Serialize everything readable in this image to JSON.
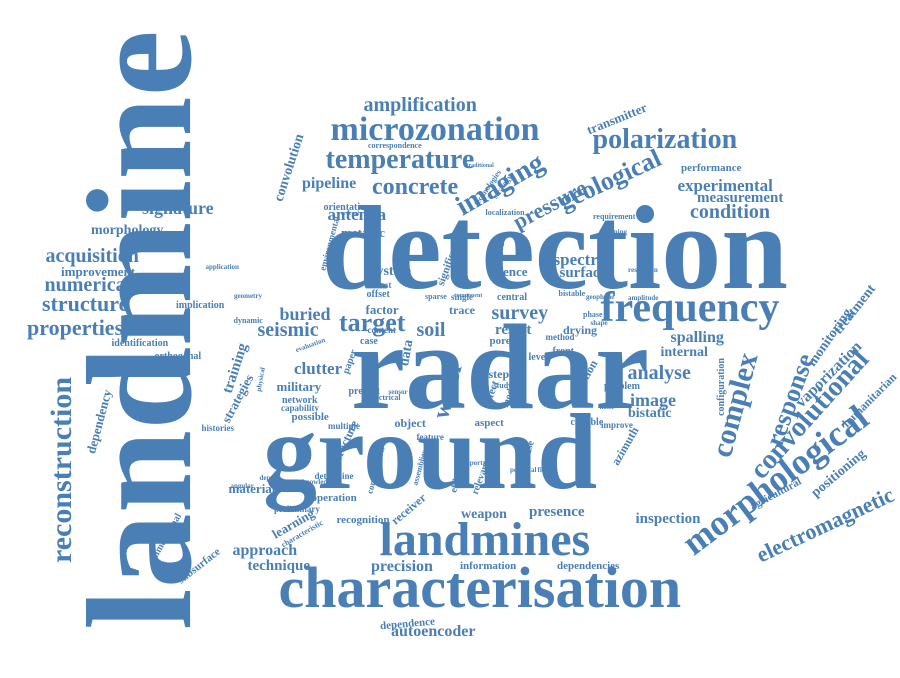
{
  "color": "#4a7fb5",
  "words": [
    "landmine",
    "detection",
    "radar",
    "ground",
    "characterisation",
    "landmines",
    "frequency",
    "microzonation",
    "morphological",
    "temperature",
    "polarization",
    "imaging",
    "geological",
    "concrete",
    "complex",
    "response",
    "convolutional",
    "electromagnetic",
    "reconstruction",
    "amplification",
    "pressure",
    "condition",
    "experimental",
    "measurement",
    "properties",
    "structure",
    "acquisition",
    "numerical",
    "signature",
    "antenna",
    "target",
    "seismic",
    "survey",
    "soil",
    "buried",
    "spectra",
    "surface",
    "analyse",
    "approach",
    "precision",
    "technique",
    "autoencoder",
    "morphology",
    "improvement",
    "convolution",
    "transmitter",
    "pipeline",
    "metallic",
    "orientation",
    "factor",
    "system",
    "clutter",
    "military",
    "network",
    "spalling",
    "internal",
    "image",
    "bistatic",
    "vaporization",
    "monitoring",
    "treatment",
    "humanitarian",
    "positioning",
    "agricultural",
    "inspection",
    "presence",
    "weapon",
    "information",
    "dependencies",
    "dependence",
    "subsurface",
    "learning",
    "training",
    "strategies",
    "dependency",
    "material",
    "receiver",
    "recognition",
    "operation",
    "water",
    "data",
    "result",
    "science",
    "performance",
    "identification",
    "orthogonal",
    "implication",
    "possible",
    "capability",
    "histories",
    "fracture",
    "pore",
    "drying",
    "trace",
    "offset",
    "single",
    "test",
    "central",
    "case",
    "step",
    "paper",
    "object",
    "aspect",
    "feature",
    "multiple",
    "azimuth",
    "configuration",
    "preliminary",
    "dimensional",
    "characteristic",
    "significant",
    "localization",
    "environmental",
    "combination",
    "relevant",
    "efficiency",
    "increase",
    "improve",
    "capable",
    "problem",
    "reflection",
    "model",
    "effect",
    "correspondence",
    "technologies",
    "requirement",
    "resolution",
    "amplitude",
    "application",
    "geometry",
    "sparse",
    "strategy",
    "front",
    "level",
    "method",
    "study",
    "present",
    "content",
    "determine",
    "knowledge",
    "important",
    "potential",
    "electrical",
    "detail",
    "world",
    "several",
    "traditional",
    "component",
    "geophone",
    "bistable",
    "dynamic",
    "physical",
    "evaluation",
    "angular",
    "assemblies",
    "demining",
    "filter",
    "noise",
    "phase",
    "sensor",
    "depth",
    "shape",
    "field",
    "pulse"
  ]
}
